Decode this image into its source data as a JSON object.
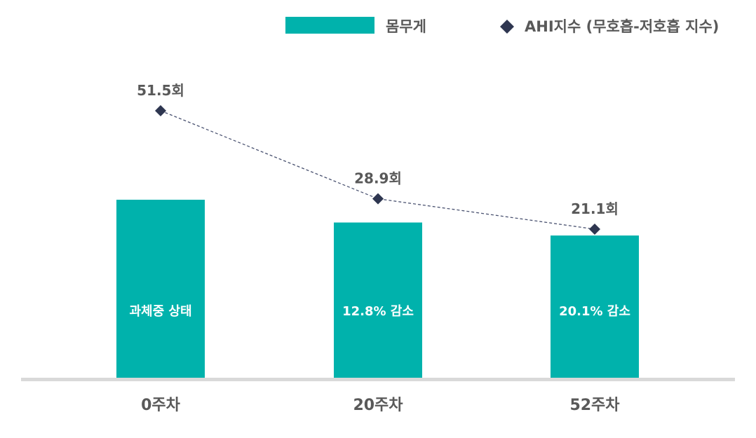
{
  "chart_data": {
    "type": "bar",
    "categories": [
      "0주차",
      "20주차",
      "52주차"
    ],
    "series": [
      {
        "name": "몸무게",
        "kind": "bar",
        "values": [
          100,
          87.2,
          79.9
        ],
        "bar_labels": [
          "과체중 상태",
          "12.8% 감소",
          "20.1% 감소"
        ]
      },
      {
        "name": "AHI지수 (무호흡-저호흡 지수)",
        "kind": "line",
        "values": [
          51.5,
          28.9,
          21.1
        ],
        "point_labels": [
          "51.5회",
          "28.9회",
          "21.1회"
        ],
        "line_style": "dashed",
        "marker": "diamond"
      }
    ],
    "legend_position": "top-right",
    "grid": false,
    "colors": {
      "bar": "#00B2AC",
      "line": "#2E3650",
      "baseline": "#D9D9D9",
      "text": "#595959",
      "bar_text": "#FFFFFF"
    }
  }
}
